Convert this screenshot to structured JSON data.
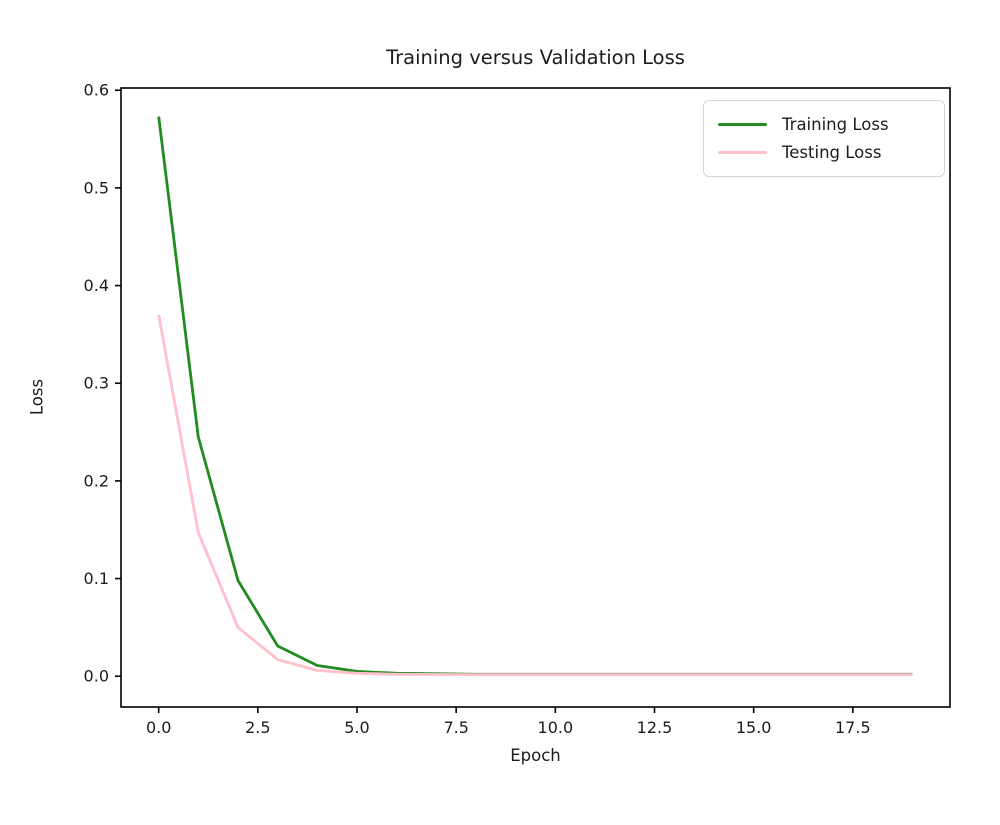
{
  "chart_data": {
    "type": "line",
    "title": "Training versus Validation Loss",
    "xlabel": "Epoch",
    "ylabel": "Loss",
    "x": [
      0,
      1,
      2,
      3,
      4,
      5,
      6,
      7,
      8,
      9,
      10,
      11,
      12,
      13,
      14,
      15,
      16,
      17,
      18,
      19
    ],
    "series": [
      {
        "name": "Training Loss",
        "color": "#228B22",
        "values": [
          0.573,
          0.245,
          0.098,
          0.031,
          0.011,
          0.005,
          0.003,
          0.0025,
          0.002,
          0.002,
          0.002,
          0.002,
          0.002,
          0.002,
          0.002,
          0.002,
          0.002,
          0.002,
          0.002,
          0.002
        ]
      },
      {
        "name": "Testing Loss",
        "color": "#FFC0CB",
        "values": [
          0.37,
          0.147,
          0.05,
          0.017,
          0.006,
          0.003,
          0.002,
          0.0018,
          0.0017,
          0.0017,
          0.0017,
          0.0017,
          0.0017,
          0.0017,
          0.0017,
          0.0017,
          0.0017,
          0.0017,
          0.0017,
          0.0017
        ]
      }
    ],
    "xticks": {
      "values": [
        0,
        2.5,
        5,
        7.5,
        10,
        12.5,
        15,
        17.5
      ],
      "labels": [
        "0.0",
        "2.5",
        "5.0",
        "7.5",
        "10.0",
        "12.5",
        "15.0",
        "17.5"
      ]
    },
    "yticks": {
      "values": [
        0,
        0.1,
        0.2,
        0.3,
        0.4,
        0.5,
        0.6
      ],
      "labels": [
        "0.0",
        "0.1",
        "0.2",
        "0.3",
        "0.4",
        "0.5",
        "0.6"
      ]
    },
    "xlim": [
      -0.95,
      19.95
    ],
    "ylim": [
      -0.0315,
      0.6023
    ],
    "grid": false,
    "legend_position": "upper right",
    "axis_color": "#000000",
    "text_color": "#1c1c1c",
    "background_color": "#ffffff"
  }
}
